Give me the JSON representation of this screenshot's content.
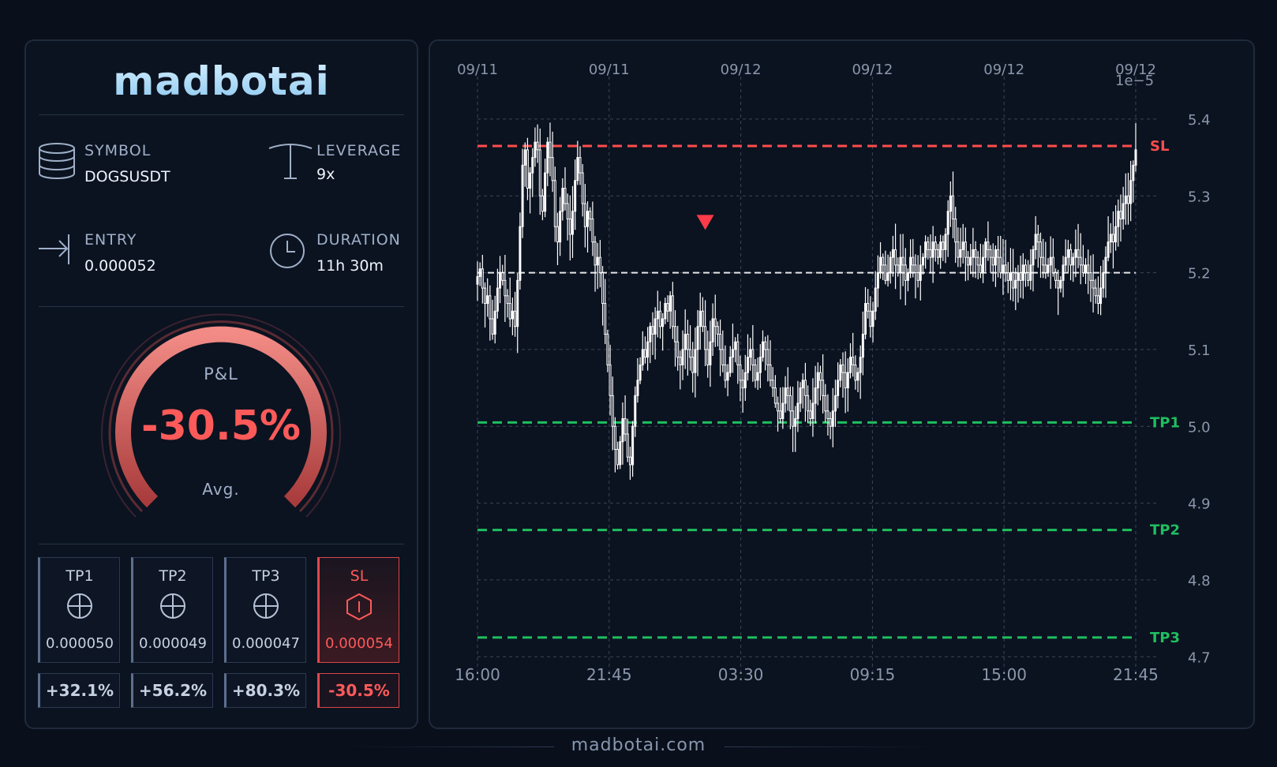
{
  "brand": {
    "logo": "madbotai",
    "footer": "madbotai.com"
  },
  "trade": {
    "symbol_label": "SYMBOL",
    "symbol": "DOGSUSDT",
    "leverage_label": "LEVERAGE",
    "leverage": "9x",
    "entry_label": "ENTRY",
    "entry": "0.000052",
    "duration_label": "DURATION",
    "duration": "11h 30m"
  },
  "pnl": {
    "title": "P&L",
    "value": "-30.5%",
    "sub": "Avg.",
    "fraction": 0.305
  },
  "targets": [
    {
      "name": "TP1",
      "price": "0.000050",
      "pct": "+32.1%",
      "icon": "crosshair-icon"
    },
    {
      "name": "TP2",
      "price": "0.000049",
      "pct": "+56.2%",
      "icon": "crosshair-icon"
    },
    {
      "name": "TP3",
      "price": "0.000047",
      "pct": "+80.3%",
      "icon": "crosshair-icon"
    },
    {
      "name": "SL",
      "price": "0.000054",
      "pct": "-30.5%",
      "icon": "shield-icon"
    }
  ],
  "colors": {
    "bg": "#0a101b",
    "sl": "#ff4d4d",
    "tp": "#1fbf5f",
    "entry": "#e6e6e6",
    "candle": "#ffffff"
  },
  "chart_data": {
    "type": "candlestick",
    "x_top_ticks": [
      "09/11",
      "09/11",
      "09/12",
      "09/12",
      "09/12",
      "09/12"
    ],
    "x_bottom_ticks": [
      "16:00",
      "21:45",
      "03:30",
      "09:15",
      "15:00",
      "21:45"
    ],
    "y_ticks": [
      "5.4",
      "5.3",
      "5.2",
      "5.1",
      "5.0",
      "4.9",
      "4.8",
      "4.7"
    ],
    "y_multiplier": "1e−5",
    "ylim": [
      4.69,
      5.44
    ],
    "levels": [
      {
        "name": "SL",
        "value": 5.365,
        "color": "#ff4d4d"
      },
      {
        "name": "TP1",
        "value": 5.005,
        "color": "#1fbf5f"
      },
      {
        "name": "TP2",
        "value": 4.865,
        "color": "#1fbf5f"
      },
      {
        "name": "TP3",
        "value": 4.725,
        "color": "#1fbf5f"
      }
    ],
    "entry": 5.2,
    "signal_marker": {
      "type": "short",
      "index": 91,
      "value": 5.265
    },
    "close": [
      5.195,
      5.205,
      5.18,
      5.16,
      5.17,
      5.14,
      5.12,
      5.15,
      5.18,
      5.2,
      5.19,
      5.17,
      5.16,
      5.14,
      5.15,
      5.13,
      5.19,
      5.26,
      5.34,
      5.36,
      5.31,
      5.33,
      5.35,
      5.37,
      5.36,
      5.3,
      5.28,
      5.33,
      5.37,
      5.35,
      5.32,
      5.26,
      5.24,
      5.28,
      5.31,
      5.29,
      5.27,
      5.25,
      5.28,
      5.32,
      5.35,
      5.33,
      5.29,
      5.26,
      5.28,
      5.27,
      5.24,
      5.21,
      5.22,
      5.2,
      5.16,
      5.12,
      5.08,
      5.04,
      5.0,
      4.97,
      4.95,
      4.98,
      5.01,
      4.99,
      4.96,
      4.95,
      5.0,
      5.04,
      5.06,
      5.08,
      5.1,
      5.09,
      5.11,
      5.13,
      5.12,
      5.14,
      5.15,
      5.13,
      5.14,
      5.16,
      5.15,
      5.17,
      5.13,
      5.11,
      5.09,
      5.08,
      5.1,
      5.12,
      5.1,
      5.09,
      5.07,
      5.1,
      5.13,
      5.15,
      5.13,
      5.1,
      5.08,
      5.11,
      5.14,
      5.13,
      5.12,
      5.1,
      5.08,
      5.06,
      5.07,
      5.09,
      5.1,
      5.11,
      5.08,
      5.06,
      5.05,
      5.07,
      5.09,
      5.1,
      5.08,
      5.06,
      5.07,
      5.09,
      5.11,
      5.1,
      5.08,
      5.06,
      5.05,
      5.03,
      5.02,
      5.01,
      5.03,
      5.05,
      5.04,
      5.02,
      5.0,
      5.01,
      5.03,
      5.05,
      5.06,
      5.04,
      5.02,
      5.01,
      5.03,
      5.05,
      5.07,
      5.06,
      5.04,
      5.02,
      5.01,
      5.0,
      5.02,
      5.04,
      5.06,
      5.08,
      5.07,
      5.05,
      5.07,
      5.09,
      5.08,
      5.06,
      5.07,
      5.09,
      5.12,
      5.16,
      5.15,
      5.13,
      5.15,
      5.18,
      5.2,
      5.22,
      5.21,
      5.19,
      5.2,
      5.22,
      5.23,
      5.21,
      5.2,
      5.22,
      5.21,
      5.19,
      5.2,
      5.22,
      5.21,
      5.2,
      5.19,
      5.21,
      5.22,
      5.24,
      5.23,
      5.22,
      5.24,
      5.23,
      5.22,
      5.24,
      5.23,
      5.25,
      5.28,
      5.3,
      5.27,
      5.24,
      5.22,
      5.23,
      5.24,
      5.22,
      5.21,
      5.22,
      5.23,
      5.22,
      5.21,
      5.2,
      5.22,
      5.24,
      5.23,
      5.22,
      5.21,
      5.23,
      5.22,
      5.2,
      5.21,
      5.2,
      5.19,
      5.2,
      5.18,
      5.19,
      5.2,
      5.19,
      5.21,
      5.2,
      5.19,
      5.21,
      5.23,
      5.25,
      5.24,
      5.22,
      5.21,
      5.2,
      5.21,
      5.22,
      5.2,
      5.19,
      5.18,
      5.19,
      5.21,
      5.22,
      5.23,
      5.21,
      5.22,
      5.23,
      5.22,
      5.21,
      5.2,
      5.21,
      5.2,
      5.19,
      5.18,
      5.17,
      5.16,
      5.18,
      5.2,
      5.22,
      5.24,
      5.25,
      5.24,
      5.26,
      5.28,
      5.27,
      5.29,
      5.3,
      5.29,
      5.32,
      5.34,
      5.36
    ]
  }
}
